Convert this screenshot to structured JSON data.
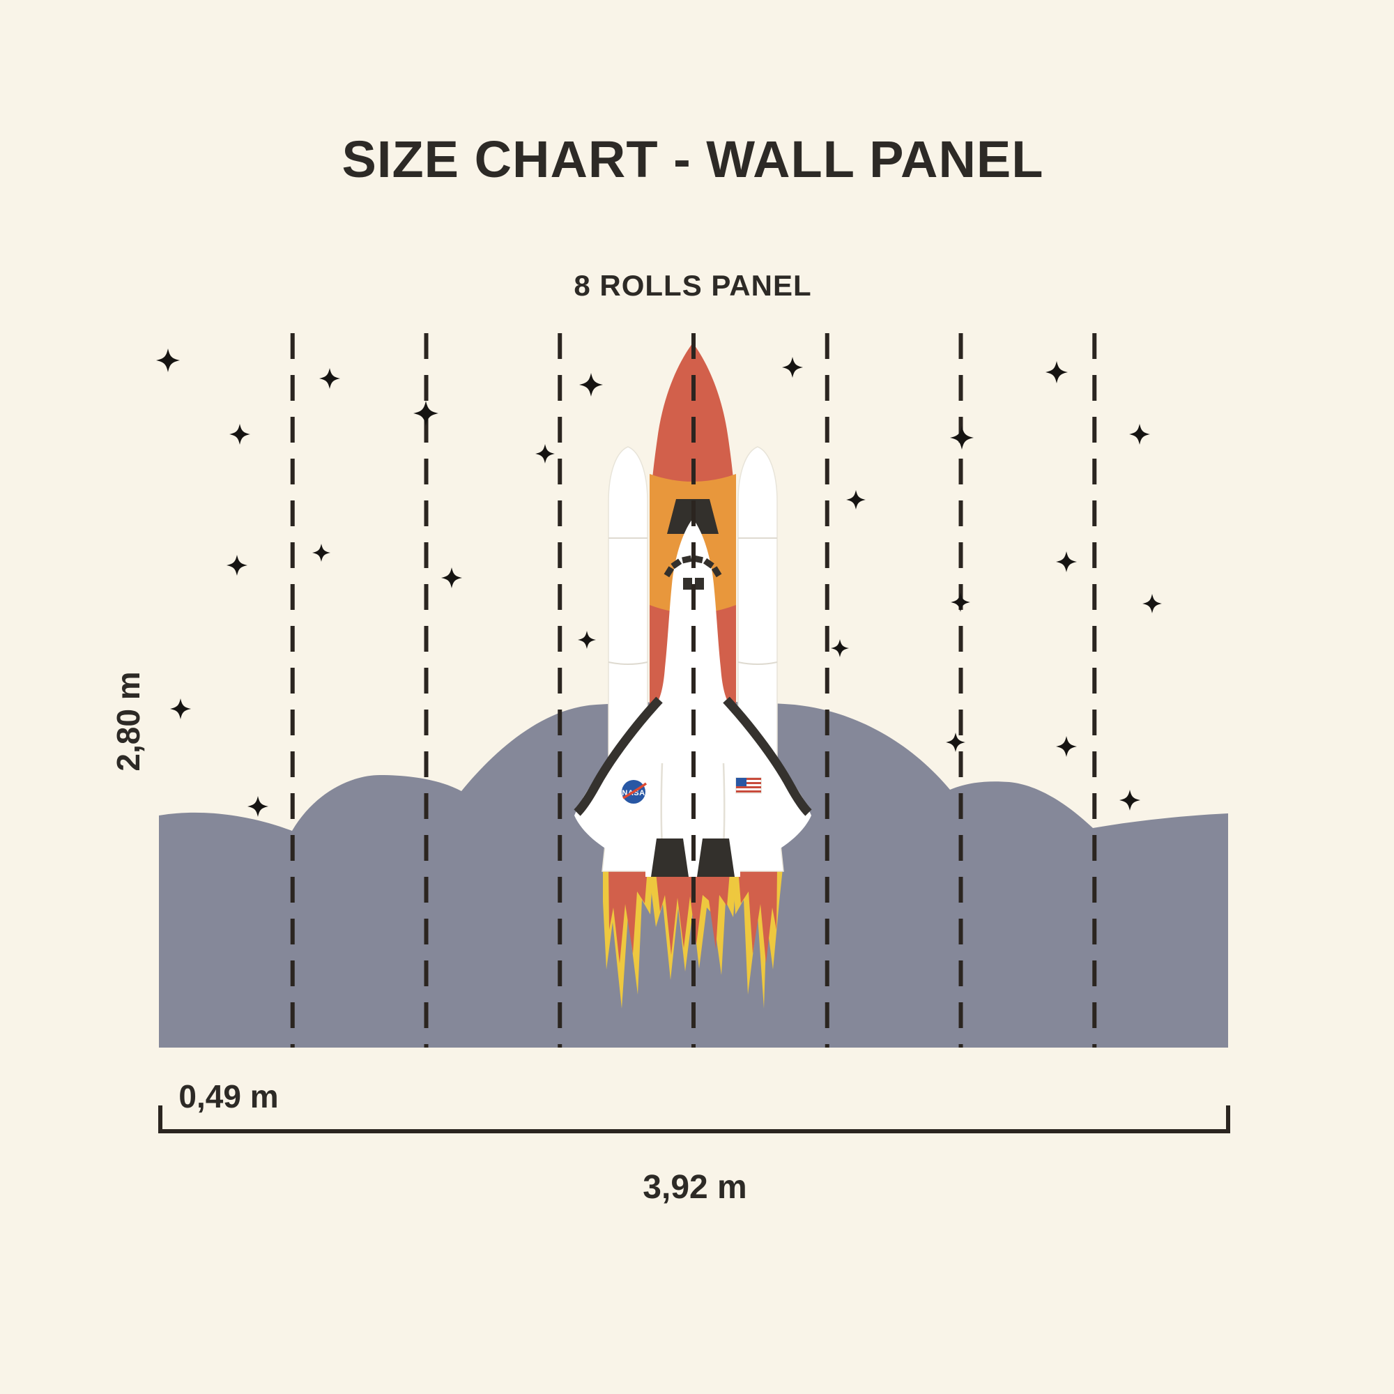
{
  "page": {
    "background": "#F9F4E8",
    "text_color": "#2D2A26"
  },
  "header": {
    "title": "SIZE CHART - WALL PANEL",
    "subtitle": "8 ROLLS PANEL"
  },
  "dimensions": {
    "panel_height_label": "2,80 m",
    "roll_width_label": "0,49 m",
    "total_width_label": "3,92 m"
  },
  "panel": {
    "rolls": 8,
    "divider_color": "#2B2520",
    "bracket_color": "#2B2520"
  },
  "illustration": {
    "cloud_color": "#858899",
    "star_color": "#161412",
    "shuttle": {
      "logo_text": "NASA",
      "logo_blue": "#2857A4",
      "logo_red": "#DE4A33",
      "tank_red": "#D2604B",
      "tank_orange": "#E8973C",
      "flame_yellow": "#EEC83F",
      "flame_red": "#D2604B",
      "dark": "#33302C",
      "white": "#FFFFFF",
      "flag_red": "#C84B3C",
      "flag_blue": "#2857A4"
    },
    "stars": [
      [
        241,
        517,
        34
      ],
      [
        473,
        543,
        30
      ],
      [
        611,
        593,
        36
      ],
      [
        344,
        623,
        30
      ],
      [
        848,
        552,
        34
      ],
      [
        1137,
        527,
        30
      ],
      [
        782,
        651,
        28
      ],
      [
        461,
        793,
        26
      ],
      [
        340,
        811,
        30
      ],
      [
        648,
        829,
        30
      ],
      [
        842,
        918,
        26
      ],
      [
        259,
        1017,
        30
      ],
      [
        370,
        1157,
        30
      ],
      [
        1516,
        534,
        32
      ],
      [
        1380,
        628,
        34
      ],
      [
        1635,
        623,
        30
      ],
      [
        1228,
        717,
        28
      ],
      [
        1530,
        806,
        30
      ],
      [
        1378,
        864,
        28
      ],
      [
        1653,
        866,
        28
      ],
      [
        1205,
        930,
        26
      ],
      [
        1371,
        1065,
        28
      ],
      [
        1530,
        1071,
        30
      ],
      [
        1621,
        1148,
        30
      ]
    ]
  }
}
